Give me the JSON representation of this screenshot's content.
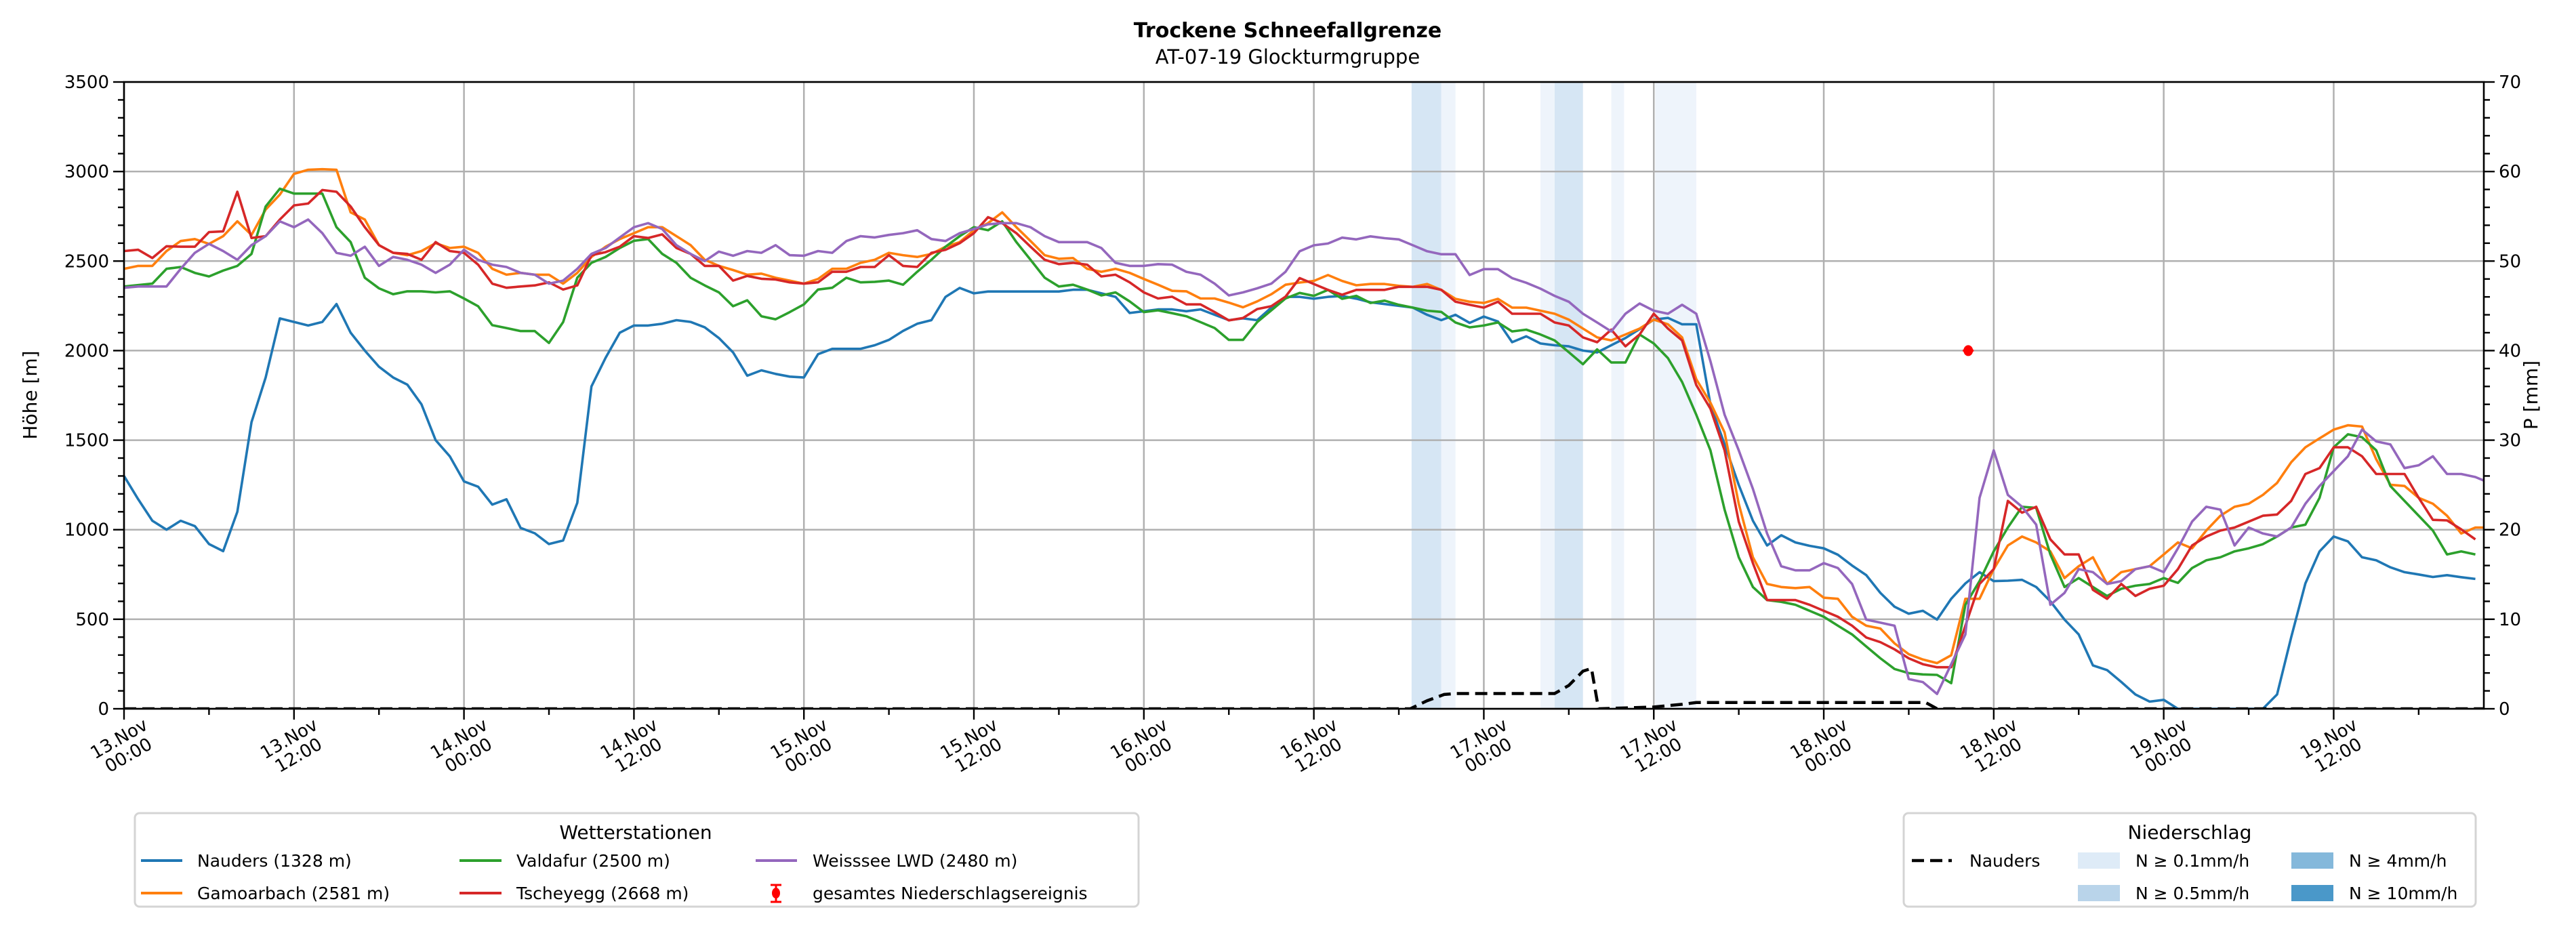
{
  "chart_data": {
    "type": "line",
    "title": "Trockene Schneefallgrenze",
    "subtitle": "AT-07-19 Glockturmgruppe",
    "ylabel": "Höhe [m]",
    "y2label": "P [mm]",
    "ylim": [
      0,
      3500
    ],
    "y2lim": [
      0,
      70
    ],
    "yticks": [
      "0",
      "500",
      "1000",
      "1500",
      "2000",
      "2500",
      "3000",
      "3500"
    ],
    "y2ticks": [
      "0",
      "10",
      "20",
      "30",
      "40",
      "50",
      "60",
      "70"
    ],
    "x_unit": "hours since 13.Nov 00:00",
    "xlim": [
      0,
      166.6
    ],
    "grid": true,
    "xticks": [
      {
        "h": 0,
        "l1": "13.Nov",
        "l2": "00:00"
      },
      {
        "h": 12,
        "l1": "13.Nov",
        "l2": "12:00"
      },
      {
        "h": 24,
        "l1": "14.Nov",
        "l2": "00:00"
      },
      {
        "h": 36,
        "l1": "14.Nov",
        "l2": "12:00"
      },
      {
        "h": 48,
        "l1": "15.Nov",
        "l2": "00:00"
      },
      {
        "h": 60,
        "l1": "15.Nov",
        "l2": "12:00"
      },
      {
        "h": 72,
        "l1": "16.Nov",
        "l2": "00:00"
      },
      {
        "h": 84,
        "l1": "16.Nov",
        "l2": "12:00"
      },
      {
        "h": 96,
        "l1": "17.Nov",
        "l2": "00:00"
      },
      {
        "h": 108,
        "l1": "17.Nov",
        "l2": "12:00"
      },
      {
        "h": 120,
        "l1": "18.Nov",
        "l2": "00:00"
      },
      {
        "h": 132,
        "l1": "18.Nov",
        "l2": "12:00"
      },
      {
        "h": 144,
        "l1": "19.Nov",
        "l2": "00:00"
      },
      {
        "h": 156,
        "l1": "19.Nov",
        "l2": "12:00"
      }
    ],
    "series": [
      {
        "name": "Nauders (1328 m)",
        "color": "#1f77b4",
        "values": [
          1300,
          1170,
          1050,
          1000,
          1050,
          1020,
          920,
          880,
          1100,
          1600,
          1850,
          2180,
          2160,
          2140,
          2160,
          2260,
          2100,
          2000,
          1910,
          1850,
          1810,
          1700,
          1500,
          1410,
          1270,
          1240,
          1140,
          1170,
          1010,
          980,
          920,
          940,
          1150,
          1800,
          1960,
          2100,
          2140,
          2140,
          2150,
          2170,
          2160,
          2130,
          2070,
          1990,
          1860,
          1890,
          1870,
          1855,
          1850,
          1980,
          2010,
          2010,
          2010,
          2030,
          2060,
          2110,
          2150,
          2170,
          2300,
          2350,
          2320,
          2330,
          2330,
          2330,
          2330,
          2330,
          2330,
          2340,
          2340,
          2320,
          2300,
          2210,
          2220,
          2230,
          2230,
          2220,
          2230,
          2200,
          2170,
          2180,
          2170,
          2240,
          2300,
          2300,
          2290,
          2300,
          2305,
          2290,
          2270,
          2260,
          2250,
          2240,
          2200,
          2170,
          2200,
          2155,
          2190,
          2163,
          2047,
          2080,
          2040,
          2030,
          2024,
          2000,
          1990,
          2030,
          2070,
          2120,
          2173,
          2183,
          2147,
          2147,
          1700,
          1476,
          1250,
          1050,
          912,
          969,
          929,
          910,
          896,
          860,
          800,
          746,
          647,
          570,
          531,
          547,
          498,
          614,
          700,
          763,
          713,
          715,
          720,
          680,
          600,
          498,
          415,
          242,
          216,
          150,
          80,
          40,
          50,
          0,
          0,
          0,
          0,
          0,
          0,
          0,
          80,
          400,
          700,
          879,
          962,
          935,
          846,
          829,
          790,
          763,
          750,
          736,
          746,
          735,
          725
        ]
      },
      {
        "name": "Gamoarbach (2581 m)",
        "color": "#ff7f0e",
        "values": [
          2457,
          2473,
          2473,
          2556,
          2612,
          2623,
          2596,
          2639,
          2722,
          2646,
          2788,
          2871,
          2987,
          3010,
          3013,
          3010,
          2772,
          2732,
          2589,
          2546,
          2533,
          2556,
          2600,
          2573,
          2580,
          2546,
          2457,
          2424,
          2434,
          2424,
          2424,
          2374,
          2434,
          2523,
          2580,
          2623,
          2656,
          2689,
          2689,
          2639,
          2589,
          2507,
          2473,
          2450,
          2424,
          2430,
          2407,
          2391,
          2374,
          2400,
          2457,
          2457,
          2490,
          2507,
          2546,
          2533,
          2523,
          2540,
          2580,
          2606,
          2672,
          2712,
          2772,
          2689,
          2612,
          2533,
          2513,
          2517,
          2457,
          2440,
          2457,
          2434,
          2400,
          2368,
          2334,
          2331,
          2291,
          2291,
          2268,
          2242,
          2275,
          2315,
          2368,
          2380,
          2389,
          2422,
          2389,
          2365,
          2372,
          2372,
          2362,
          2356,
          2372,
          2339,
          2289,
          2273,
          2266,
          2289,
          2240,
          2240,
          2223,
          2206,
          2173,
          2123,
          2074,
          2057,
          2090,
          2123,
          2173,
          2147,
          2074,
          1841,
          1709,
          1543,
          1145,
          846,
          697,
          680,
          674,
          680,
          620,
          614,
          514,
          464,
          448,
          365,
          305,
          275,
          255,
          299,
          614,
          614,
          780,
          912,
          962,
          929,
          879,
          730,
          796,
          846,
          697,
          763,
          780,
          796,
          862,
          929,
          896,
          995,
          1078,
          1128,
          1145,
          1194,
          1261,
          1377,
          1460,
          1510,
          1559,
          1583,
          1576,
          1393,
          1251,
          1244,
          1178,
          1145,
          1078,
          979,
          1012,
          1012
        ]
      },
      {
        "name": "Valdafur (2500 m)",
        "color": "#2ca02c",
        "values": [
          2358,
          2366,
          2374,
          2457,
          2467,
          2434,
          2414,
          2447,
          2473,
          2540,
          2805,
          2904,
          2877,
          2877,
          2877,
          2689,
          2606,
          2407,
          2348,
          2315,
          2331,
          2331,
          2325,
          2331,
          2291,
          2248,
          2142,
          2126,
          2109,
          2109,
          2043,
          2159,
          2407,
          2490,
          2523,
          2573,
          2613,
          2623,
          2540,
          2490,
          2407,
          2364,
          2325,
          2248,
          2281,
          2192,
          2175,
          2215,
          2258,
          2341,
          2351,
          2407,
          2381,
          2384,
          2391,
          2368,
          2440,
          2507,
          2580,
          2639,
          2689,
          2672,
          2722,
          2606,
          2507,
          2407,
          2358,
          2368,
          2341,
          2308,
          2325,
          2275,
          2215,
          2225,
          2209,
          2192,
          2159,
          2126,
          2060,
          2060,
          2159,
          2225,
          2291,
          2322,
          2306,
          2339,
          2289,
          2306,
          2266,
          2279,
          2256,
          2240,
          2223,
          2216,
          2157,
          2130,
          2140,
          2157,
          2107,
          2117,
          2090,
          2057,
          1991,
          1924,
          2007,
          1934,
          1934,
          2090,
          2040,
          1958,
          1825,
          1642,
          1443,
          1112,
          846,
          680,
          607,
          597,
          581,
          547,
          514,
          464,
          415,
          348,
          282,
          222,
          199,
          192,
          189,
          143,
          581,
          713,
          879,
          1012,
          1128,
          1122,
          862,
          680,
          730,
          680,
          630,
          670,
          687,
          697,
          730,
          703,
          786,
          829,
          846,
          879,
          896,
          919,
          962,
          1012,
          1028,
          1178,
          1460,
          1533,
          1516,
          1443,
          1244,
          1161,
          1078,
          995,
          862,
          879,
          862
        ]
      },
      {
        "name": "Tscheyegg (2668 m)",
        "color": "#d62728",
        "values": [
          2556,
          2563,
          2517,
          2583,
          2580,
          2580,
          2662,
          2666,
          2887,
          2629,
          2639,
          2732,
          2811,
          2821,
          2897,
          2887,
          2805,
          2689,
          2589,
          2546,
          2540,
          2507,
          2606,
          2556,
          2546,
          2480,
          2374,
          2351,
          2358,
          2364,
          2381,
          2341,
          2364,
          2533,
          2550,
          2580,
          2639,
          2629,
          2649,
          2573,
          2540,
          2473,
          2473,
          2391,
          2417,
          2401,
          2397,
          2381,
          2374,
          2381,
          2440,
          2440,
          2467,
          2467,
          2533,
          2473,
          2467,
          2546,
          2563,
          2600,
          2656,
          2745,
          2712,
          2656,
          2580,
          2507,
          2483,
          2490,
          2480,
          2414,
          2424,
          2381,
          2325,
          2291,
          2301,
          2258,
          2258,
          2215,
          2169,
          2182,
          2232,
          2248,
          2301,
          2405,
          2372,
          2339,
          2312,
          2339,
          2339,
          2339,
          2356,
          2356,
          2356,
          2339,
          2273,
          2256,
          2240,
          2273,
          2206,
          2206,
          2206,
          2157,
          2140,
          2074,
          2047,
          2117,
          2024,
          2090,
          2206,
          2123,
          2057,
          1808,
          1676,
          1443,
          1045,
          813,
          607,
          607,
          607,
          581,
          547,
          514,
          464,
          398,
          372,
          332,
          282,
          249,
          232,
          232,
          464,
          697,
          780,
          1161,
          1095,
          1128,
          946,
          862,
          862,
          664,
          614,
          697,
          630,
          670,
          687,
          780,
          912,
          962,
          995,
          1012,
          1045,
          1078,
          1085,
          1161,
          1311,
          1344,
          1460,
          1460,
          1410,
          1311,
          1311,
          1311,
          1178,
          1055,
          1052,
          1002,
          946
        ]
      },
      {
        "name": "Weisssee LWD (2480 m)",
        "color": "#9467bd",
        "values": [
          2351,
          2358,
          2358,
          2358,
          2457,
          2546,
          2596,
          2556,
          2507,
          2589,
          2639,
          2722,
          2689,
          2732,
          2656,
          2546,
          2530,
          2580,
          2473,
          2523,
          2507,
          2480,
          2434,
          2480,
          2563,
          2507,
          2480,
          2467,
          2434,
          2424,
          2374,
          2391,
          2457,
          2540,
          2573,
          2632,
          2689,
          2712,
          2679,
          2589,
          2540,
          2500,
          2553,
          2530,
          2556,
          2546,
          2589,
          2533,
          2530,
          2556,
          2546,
          2612,
          2639,
          2632,
          2646,
          2656,
          2672,
          2623,
          2612,
          2656,
          2679,
          2705,
          2712,
          2712,
          2689,
          2639,
          2606,
          2606,
          2606,
          2573,
          2490,
          2473,
          2473,
          2483,
          2480,
          2440,
          2424,
          2374,
          2308,
          2325,
          2348,
          2374,
          2440,
          2555,
          2588,
          2598,
          2631,
          2621,
          2638,
          2628,
          2621,
          2588,
          2555,
          2538,
          2538,
          2422,
          2455,
          2455,
          2405,
          2379,
          2346,
          2306,
          2273,
          2206,
          2157,
          2107,
          2206,
          2263,
          2223,
          2206,
          2256,
          2206,
          1941,
          1642,
          1443,
          1228,
          979,
          796,
          773,
          773,
          813,
          786,
          697,
          498,
          481,
          464,
          166,
          149,
          83,
          249,
          415,
          1178,
          1443,
          1194,
          1128,
          1028,
          581,
          647,
          780,
          763,
          697,
          713,
          780,
          796,
          763,
          896,
          1045,
          1128,
          1112,
          912,
          1012,
          979,
          962,
          1012,
          1145,
          1244,
          1327,
          1410,
          1559,
          1493,
          1476,
          1344,
          1360,
          1410,
          1311,
          1311,
          1294,
          1261
        ]
      }
    ],
    "precip": {
      "name": "Nauders",
      "unit": "mm",
      "points": [
        [
          0,
          0
        ],
        [
          90.8,
          0
        ],
        [
          92,
          0.9
        ],
        [
          93.2,
          1.6
        ],
        [
          94,
          1.7
        ],
        [
          101,
          1.7
        ],
        [
          102,
          2.6
        ],
        [
          103,
          4.2
        ],
        [
          103.6,
          4.5
        ],
        [
          104.1,
          0
        ],
        [
          106,
          0.1
        ],
        [
          108,
          0.2
        ],
        [
          110,
          0.5
        ],
        [
          111,
          0.7
        ],
        [
          127.2,
          0.7
        ],
        [
          128,
          0
        ],
        [
          166.6,
          0
        ]
      ]
    },
    "bands": [
      {
        "start": 90.9,
        "end": 93.0,
        "level": "N ≥ 0.5mm/h"
      },
      {
        "start": 93.0,
        "end": 94.0,
        "level": "N ≥ 0.1mm/h"
      },
      {
        "start": 100.0,
        "end": 101.0,
        "level": "N ≥ 0.1mm/h"
      },
      {
        "start": 101.0,
        "end": 103.0,
        "level": "N ≥ 0.5mm/h"
      },
      {
        "start": 105.0,
        "end": 105.9,
        "level": "N ≥ 0.1mm/h"
      },
      {
        "start": 108.1,
        "end": 111.0,
        "level": "N ≥ 0.1mm/h"
      }
    ],
    "event": {
      "h": 130.2,
      "mm": 40,
      "label": "gesamtes Niederschlagsereignis"
    }
  },
  "legend_stations": {
    "title": "Wetterstationen",
    "items": [
      "Nauders (1328 m)",
      "Gamoarbach (2581 m)",
      "Valdafur (2500 m)",
      "Tscheyegg (2668 m)",
      "Weisssee LWD (2480 m)",
      "gesamtes Niederschlagsereignis"
    ]
  },
  "legend_precip": {
    "title": "Niederschlag",
    "items": [
      "Nauders",
      "N ≥ 0.1mm/h",
      "N ≥ 0.5mm/h",
      "N ≥ 4mm/h",
      "N ≥ 10mm/h"
    ],
    "colors": {
      "n01": "#deebf7",
      "n05": "#c6dbef",
      "n4": "#84b8db",
      "n10": "#4a98c9"
    }
  }
}
